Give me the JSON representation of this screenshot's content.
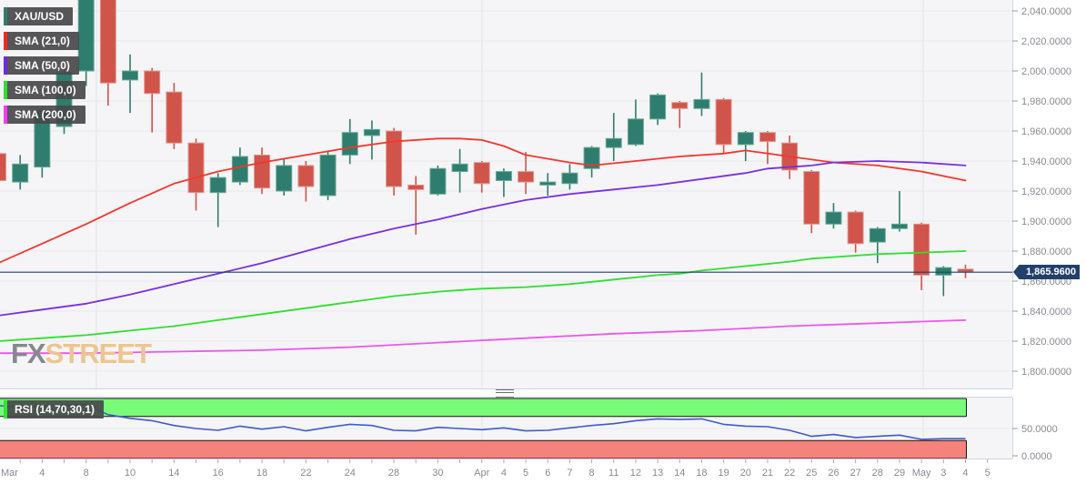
{
  "instrument": "XAU/USD",
  "legend": {
    "items": [
      {
        "label": "XAU/USD",
        "color": "#2e7d6e"
      },
      {
        "label": "SMA (21,0)",
        "color": "#f8261d"
      },
      {
        "label": "SMA (50,0)",
        "color": "#6e2ae0"
      },
      {
        "label": "SMA (100,0)",
        "color": "#2ce22c"
      },
      {
        "label": "SMA (200,0)",
        "color": "#f83af8"
      }
    ]
  },
  "rsi_legend": {
    "label": "RSI (14,70,30,1)",
    "color": "#32e432"
  },
  "watermark": {
    "fx": "FX",
    "street": "STREET"
  },
  "price_axis": {
    "ticks": [
      {
        "v": 2040,
        "t": "2,040.0000"
      },
      {
        "v": 2020,
        "t": "2,020.0000"
      },
      {
        "v": 2000,
        "t": "2,000.0000"
      },
      {
        "v": 1980,
        "t": "1,980.0000"
      },
      {
        "v": 1960,
        "t": "1,960.0000"
      },
      {
        "v": 1940,
        "t": "1,940.0000"
      },
      {
        "v": 1920,
        "t": "1,920.0000"
      },
      {
        "v": 1900,
        "t": "1,900.0000"
      },
      {
        "v": 1880,
        "t": "1,880.0000"
      },
      {
        "v": 1860,
        "t": "1,860.0000"
      },
      {
        "v": 1840,
        "t": "1,840.0000"
      },
      {
        "v": 1820,
        "t": "1,820.0000"
      },
      {
        "v": 1800,
        "t": "1,800.0000"
      }
    ],
    "current_label": "1,865.9600",
    "current_value": 1865.96
  },
  "rsi_axis": {
    "ticks": [
      {
        "v": 50,
        "t": "50.0000"
      },
      {
        "v": 0,
        "t": "0.0000"
      }
    ]
  },
  "x_axis": {
    "labels": [
      {
        "i": 0,
        "t": "Mar",
        "anchor": "start"
      },
      {
        "i": 2,
        "t": "4"
      },
      {
        "i": 4,
        "t": "8"
      },
      {
        "i": 6,
        "t": "10"
      },
      {
        "i": 8,
        "t": "14"
      },
      {
        "i": 10,
        "t": "16"
      },
      {
        "i": 12,
        "t": "18"
      },
      {
        "i": 14,
        "t": "22"
      },
      {
        "i": 16,
        "t": "24"
      },
      {
        "i": 18,
        "t": "28"
      },
      {
        "i": 20,
        "t": "30"
      },
      {
        "i": 22,
        "t": "Apr"
      },
      {
        "i": 23,
        "t": "4"
      },
      {
        "i": 24,
        "t": "5"
      },
      {
        "i": 25,
        "t": "6"
      },
      {
        "i": 26,
        "t": "7"
      },
      {
        "i": 27,
        "t": "8"
      },
      {
        "i": 28,
        "t": "11"
      },
      {
        "i": 29,
        "t": "12"
      },
      {
        "i": 30,
        "t": "13"
      },
      {
        "i": 31,
        "t": "14"
      },
      {
        "i": 32,
        "t": "18"
      },
      {
        "i": 33,
        "t": "19"
      },
      {
        "i": 34,
        "t": "20"
      },
      {
        "i": 35,
        "t": "21"
      },
      {
        "i": 36,
        "t": "22"
      },
      {
        "i": 37,
        "t": "25"
      },
      {
        "i": 38,
        "t": "26"
      },
      {
        "i": 39,
        "t": "27"
      },
      {
        "i": 40,
        "t": "28"
      },
      {
        "i": 41,
        "t": "29"
      },
      {
        "i": 42,
        "t": "May"
      },
      {
        "i": 43,
        "t": "3"
      },
      {
        "i": 44,
        "t": "4"
      },
      {
        "i": 45,
        "t": "5"
      }
    ]
  },
  "chart_data": [
    {
      "type": "candlestick",
      "title": "XAU/USD daily candles with SMA overlays",
      "ylim": [
        1788,
        2047
      ],
      "up_color": "#2e7d6e",
      "down_color": "#d0544a",
      "up_border": "#6aa897",
      "down_border": "#df9a90",
      "x_dates": [
        "Mar 2",
        "Mar 3",
        "Mar 4",
        "Mar 7",
        "Mar 8",
        "Mar 9",
        "Mar 10",
        "Mar 11",
        "Mar 14",
        "Mar 15",
        "Mar 16",
        "Mar 17",
        "Mar 18",
        "Mar 21",
        "Mar 22",
        "Mar 23",
        "Mar 24",
        "Mar 25",
        "Mar 28",
        "Mar 29",
        "Mar 30",
        "Mar 31",
        "Apr 1",
        "Apr 4",
        "Apr 5",
        "Apr 6",
        "Apr 7",
        "Apr 8",
        "Apr 11",
        "Apr 12",
        "Apr 13",
        "Apr 14",
        "Apr 18",
        "Apr 19",
        "Apr 20",
        "Apr 21",
        "Apr 22",
        "Apr 25",
        "Apr 26",
        "Apr 27",
        "Apr 28",
        "Apr 29",
        "May 2",
        "May 3",
        "May 4"
      ],
      "ohlc": [
        [
          1945,
          1951,
          1922,
          1927
        ],
        [
          1926,
          1944,
          1921,
          1938
        ],
        [
          1936,
          1976,
          1929,
          1974
        ],
        [
          1963,
          2002,
          1958,
          1999
        ],
        [
          2000,
          2070,
          1990,
          2052
        ],
        [
          2051,
          2055,
          1977,
          1992
        ],
        [
          1994,
          2011,
          1972,
          2000
        ],
        [
          2000,
          2002,
          1959,
          1985
        ],
        [
          1986,
          1992,
          1948,
          1952
        ],
        [
          1952,
          1955,
          1907,
          1919
        ],
        [
          1919,
          1932,
          1896,
          1929
        ],
        [
          1926,
          1949,
          1924,
          1943
        ],
        [
          1944,
          1949,
          1918,
          1922
        ],
        [
          1920,
          1941,
          1917,
          1937
        ],
        [
          1937,
          1940,
          1913,
          1923
        ],
        [
          1917,
          1946,
          1914,
          1944
        ],
        [
          1944,
          1968,
          1938,
          1959
        ],
        [
          1957,
          1967,
          1941,
          1961
        ],
        [
          1960,
          1962,
          1917,
          1923
        ],
        [
          1924,
          1930,
          1891,
          1921
        ],
        [
          1918,
          1937,
          1917,
          1935
        ],
        [
          1933,
          1948,
          1919,
          1938
        ],
        [
          1939,
          1940,
          1919,
          1925
        ],
        [
          1927,
          1935,
          1916,
          1933
        ],
        [
          1933,
          1946,
          1918,
          1926
        ],
        [
          1924,
          1932,
          1917,
          1926
        ],
        [
          1925,
          1938,
          1921,
          1932
        ],
        [
          1935,
          1950,
          1929,
          1949
        ],
        [
          1949,
          1972,
          1940,
          1955
        ],
        [
          1951,
          1981,
          1950,
          1968
        ],
        [
          1968,
          1985,
          1964,
          1984
        ],
        [
          1979,
          1980,
          1962,
          1975
        ],
        [
          1975,
          1999,
          1970,
          1981
        ],
        [
          1981,
          1982,
          1945,
          1951
        ],
        [
          1951,
          1960,
          1940,
          1959
        ],
        [
          1959,
          1960,
          1938,
          1953
        ],
        [
          1952,
          1957,
          1928,
          1934
        ],
        [
          1933,
          1934,
          1892,
          1898
        ],
        [
          1898,
          1912,
          1895,
          1906
        ],
        [
          1906,
          1907,
          1879,
          1885
        ],
        [
          1886,
          1896,
          1872,
          1895
        ],
        [
          1895,
          1920,
          1893,
          1898
        ],
        [
          1898,
          1899,
          1854,
          1864
        ],
        [
          1864,
          1870,
          1850,
          1869
        ],
        [
          1868,
          1871,
          1862,
          1866
        ]
      ],
      "current_price": 1865.96,
      "series": [
        {
          "name": "SMA (21,0)",
          "color": "#f5352b",
          "points": [
            [
              0,
              1872
            ],
            [
              2,
              1885
            ],
            [
              4,
              1898
            ],
            [
              6,
              1912
            ],
            [
              8,
              1925
            ],
            [
              10,
              1933
            ],
            [
              12,
              1939
            ],
            [
              14,
              1944
            ],
            [
              16,
              1949
            ],
            [
              18,
              1953
            ],
            [
              20,
              1955
            ],
            [
              21,
              1955
            ],
            [
              22,
              1954
            ],
            [
              23,
              1950
            ],
            [
              24,
              1944
            ],
            [
              26,
              1939
            ],
            [
              27,
              1937
            ],
            [
              29,
              1940
            ],
            [
              31,
              1943
            ],
            [
              33,
              1945
            ],
            [
              34,
              1947
            ],
            [
              36,
              1943
            ],
            [
              38,
              1939
            ],
            [
              40,
              1937
            ],
            [
              42,
              1933
            ],
            [
              43,
              1930
            ],
            [
              44,
              1927
            ]
          ]
        },
        {
          "name": "SMA (50,0)",
          "color": "#7a2fe2",
          "points": [
            [
              0,
              1837
            ],
            [
              2,
              1841
            ],
            [
              4,
              1845
            ],
            [
              6,
              1851
            ],
            [
              8,
              1858
            ],
            [
              10,
              1865
            ],
            [
              12,
              1872
            ],
            [
              14,
              1880
            ],
            [
              16,
              1888
            ],
            [
              18,
              1895
            ],
            [
              20,
              1901
            ],
            [
              22,
              1908
            ],
            [
              24,
              1914
            ],
            [
              26,
              1918
            ],
            [
              28,
              1921
            ],
            [
              30,
              1924
            ],
            [
              32,
              1928
            ],
            [
              34,
              1932
            ],
            [
              35,
              1935
            ],
            [
              37,
              1937
            ],
            [
              38,
              1939
            ],
            [
              40,
              1940
            ],
            [
              42,
              1939
            ],
            [
              44,
              1937
            ]
          ]
        },
        {
          "name": "SMA (100,0)",
          "color": "#2ee02e",
          "points": [
            [
              0,
              1820
            ],
            [
              2,
              1822
            ],
            [
              4,
              1824
            ],
            [
              6,
              1827
            ],
            [
              8,
              1830
            ],
            [
              10,
              1834
            ],
            [
              12,
              1838
            ],
            [
              14,
              1842
            ],
            [
              16,
              1846
            ],
            [
              18,
              1850
            ],
            [
              20,
              1853
            ],
            [
              22,
              1855
            ],
            [
              24,
              1856
            ],
            [
              26,
              1858
            ],
            [
              28,
              1861
            ],
            [
              30,
              1864
            ],
            [
              31,
              1865
            ],
            [
              32,
              1867
            ],
            [
              34,
              1870
            ],
            [
              36,
              1873
            ],
            [
              37,
              1875
            ],
            [
              38,
              1876
            ],
            [
              40,
              1878
            ],
            [
              42,
              1879
            ],
            [
              44,
              1880
            ]
          ]
        },
        {
          "name": "SMA (200,0)",
          "color": "#ee55ee",
          "points": [
            [
              0,
              1812
            ],
            [
              4,
              1812
            ],
            [
              8,
              1813
            ],
            [
              12,
              1814
            ],
            [
              16,
              1816
            ],
            [
              20,
              1819
            ],
            [
              24,
              1822
            ],
            [
              28,
              1825
            ],
            [
              32,
              1827
            ],
            [
              36,
              1830
            ],
            [
              40,
              1832
            ],
            [
              42,
              1833
            ],
            [
              44,
              1834
            ]
          ]
        }
      ]
    },
    {
      "type": "line",
      "title": "RSI (14,70,30,1)",
      "ylim": [
        0,
        100
      ],
      "line_color": "#4059ce",
      "values": [
        88,
        86,
        87,
        89,
        90,
        73,
        67,
        63,
        55,
        50,
        47,
        54,
        49,
        53,
        46,
        52,
        57,
        55,
        47,
        46,
        52,
        50,
        48,
        51,
        46,
        47,
        51,
        55,
        58,
        63,
        66,
        65,
        66,
        57,
        54,
        53,
        47,
        37,
        40,
        35,
        37,
        39,
        32,
        33,
        33
      ],
      "bands": [
        {
          "from": 70,
          "to": 100,
          "color": "#79fb79",
          "border": "#151515"
        },
        {
          "from": 0,
          "to": 30,
          "color": "#f5827b",
          "border": "#151515"
        }
      ],
      "levels": [
        70,
        30
      ]
    }
  ]
}
